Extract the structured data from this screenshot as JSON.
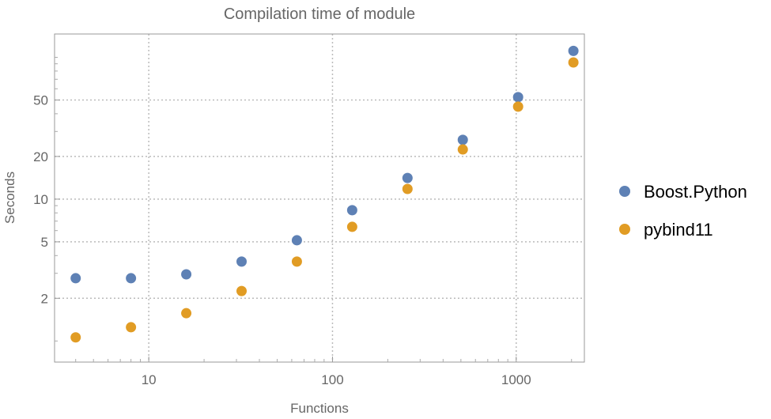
{
  "chart_data": {
    "type": "scatter",
    "title": "Compilation time of module",
    "xlabel": "Functions",
    "ylabel": "Seconds",
    "x_scale": "log",
    "y_scale": "log",
    "xlim": [
      3.07,
      2350
    ],
    "ylim": [
      0.71,
      146
    ],
    "x_ticks": [
      10,
      100,
      1000
    ],
    "x_tick_labels": [
      "10",
      "100",
      "1000"
    ],
    "y_ticks": [
      2,
      5,
      10,
      20,
      50
    ],
    "y_tick_labels": [
      "2",
      "5",
      "10",
      "20",
      "50"
    ],
    "grid": true,
    "legend_position": "right",
    "x": [
      4,
      8,
      16,
      32,
      64,
      128,
      256,
      512,
      1024,
      2048
    ],
    "series": [
      {
        "name": "Boost.Python",
        "color": "#5e81b5",
        "values": [
          2.77,
          2.77,
          2.95,
          3.63,
          5.13,
          8.36,
          14.1,
          26.2,
          52.4,
          111
        ]
      },
      {
        "name": "pybind11",
        "color": "#e19c24",
        "values": [
          1.06,
          1.25,
          1.57,
          2.25,
          3.63,
          6.38,
          11.8,
          22.4,
          44.9,
          92
        ]
      }
    ]
  }
}
